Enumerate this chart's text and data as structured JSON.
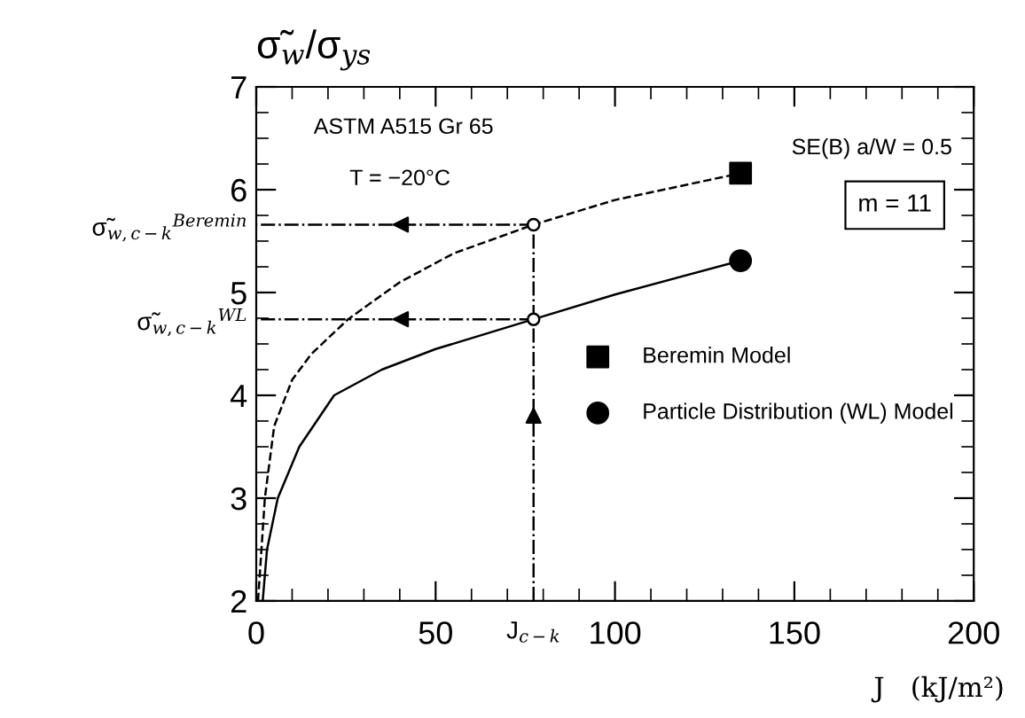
{
  "chart_data": {
    "type": "line",
    "ylabel": "σ̃$_{w}$/σ$_{ys}$",
    "xlabel": "J   (kJ/m²)",
    "xlim": [
      0,
      200
    ],
    "xticks": [
      0,
      50,
      {
        "value": 77.3,
        "label": "J$_{c−k}$"
      },
      100,
      150,
      200
    ],
    "ylim": [
      2,
      7
    ],
    "yticks": [
      2,
      3,
      4,
      {
        "value": 4.74,
        "label": "σ̃$_{w,c−k}$$^{WL}$"
      },
      5,
      {
        "value": 5.66,
        "label": "σ̃$_{w,c−k}$$^{Beremin}$"
      },
      6,
      7
    ],
    "grid": false,
    "legend": "center right",
    "series": [
      {
        "color": "#000000",
        "line_style": "dashed",
        "marker": "none",
        "x": [
          0.5,
          2.4,
          5,
          10,
          15.3,
          25.6,
          40,
          55,
          77.3,
          100,
          135
        ],
        "values": [
          2.0,
          3.0,
          3.7,
          4.15,
          4.4,
          4.74,
          5.1,
          5.38,
          5.66,
          5.9,
          6.16
        ]
      },
      {
        "color": "#000000",
        "line_style": "solid",
        "marker": "none",
        "x": [
          1.8,
          3,
          6,
          12,
          21.7,
          35,
          50,
          77.3,
          100,
          135
        ],
        "values": [
          2.0,
          2.5,
          3.0,
          3.5,
          4.0,
          4.25,
          4.45,
          4.74,
          4.98,
          5.31
        ]
      },
      {
        "type": "scatter",
        "name": "Beremin Model",
        "color": "#000000",
        "marker": "square",
        "x": [
          135
        ],
        "values": [
          6.16
        ]
      },
      {
        "type": "scatter",
        "name": "Particle Distribution (WL) Model",
        "color": "#000000",
        "marker": "circle",
        "x": [
          135
        ],
        "values": [
          5.31
        ]
      },
      {
        "color": "#000000",
        "line_style": "dashdot",
        "marker": "none",
        "x": [
          77.3,
          0
        ],
        "values": [
          5.66,
          5.66
        ]
      },
      {
        "color": "#000000",
        "line_style": "dashdot",
        "marker": "none",
        "x": [
          77.3,
          0
        ],
        "values": [
          4.74,
          4.74
        ]
      },
      {
        "color": "#000000",
        "line_style": "dashdot",
        "marker": "none",
        "x": [
          77.3,
          77.3
        ],
        "values": [
          2,
          5.66
        ]
      },
      {
        "type": "scatter",
        "color": "#ffffff",
        "marker": "circle",
        "x": [
          77.3,
          77.3
        ],
        "values": [
          5.66,
          4.74
        ]
      }
    ],
    "annotations": [
      "ASTM A515 Gr 65",
      "T = −20°C",
      "SE(B) a/W = 0.5",
      "m = 11"
    ]
  }
}
